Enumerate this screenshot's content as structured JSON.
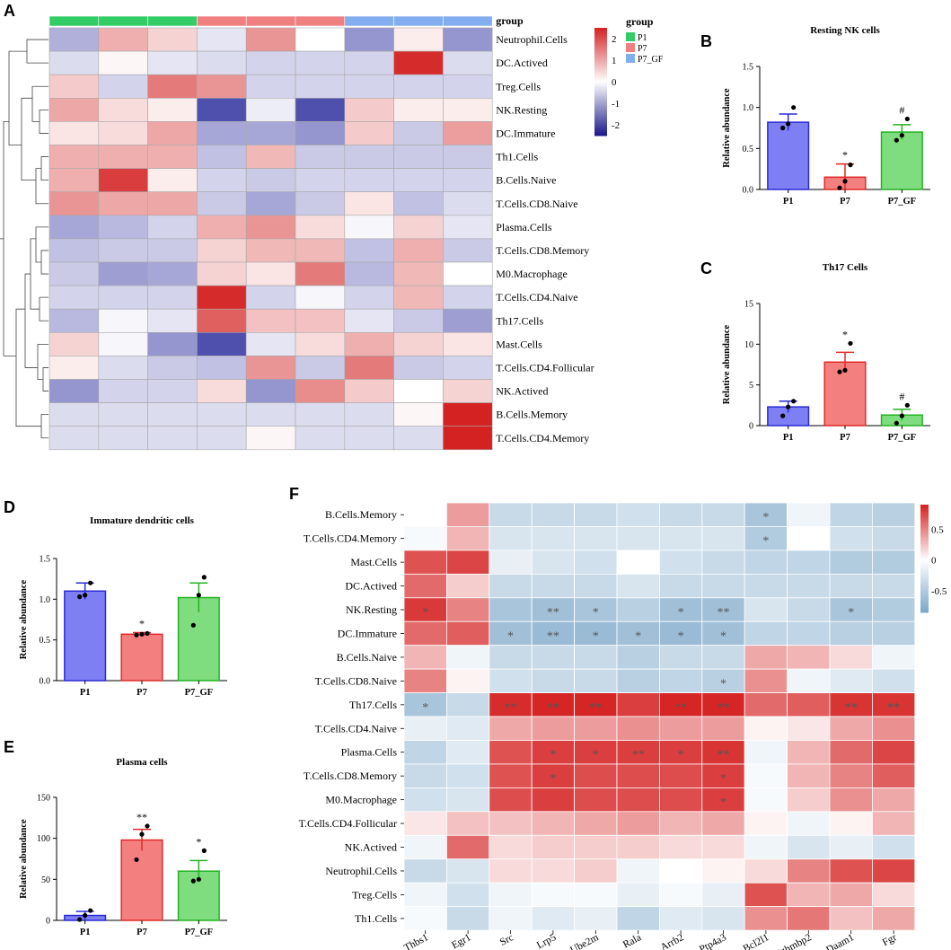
{
  "colors": {
    "P1": "#33cc66",
    "P7": "#f08080",
    "P7_GF": "#82aef0",
    "neg": "#1f1f9a",
    "pos": "#d42020"
  },
  "panels": {
    "A": "A",
    "B": "B",
    "C": "C",
    "D": "D",
    "E": "E",
    "F": "F"
  },
  "chart_data": [
    {
      "type": "heatmap",
      "panel": "A",
      "column_groups": [
        "P1",
        "P1",
        "P1",
        "P7",
        "P7",
        "P7",
        "P7_GF",
        "P7_GF",
        "P7_GF"
      ],
      "group_header": "group",
      "legend_title": "group",
      "legend_items": [
        "P1",
        "P7",
        "P7_GF"
      ],
      "colorbar_ticks": [
        "2",
        "1",
        "0",
        "-1",
        "-2"
      ],
      "colorbar_range": [
        -2.5,
        2.5
      ],
      "rows": [
        "Neutrophil.Cells",
        "DC.Actived",
        "Treg.Cells",
        "NK.Resting",
        "DC.Immature",
        "Th1.Cells",
        "B.Cells.Naive",
        "T.Cells.CD8.Naive",
        "Plasma.Cells",
        "T.Cells.CD8.Memory",
        "M0.Macrophage",
        "T.Cells.CD4.Naive",
        "Th17.Cells",
        "Mast.Cells",
        "T.Cells.CD4.Follicular",
        "NK.Actived",
        "B.Cells.Memory",
        "T.Cells.CD4.Memory"
      ],
      "values": [
        [
          -0.9,
          0.9,
          0.5,
          -0.3,
          1.2,
          0.0,
          -1.2,
          0.2,
          -1.2
        ],
        [
          -0.4,
          0.1,
          -0.3,
          -0.4,
          -0.5,
          -0.5,
          -0.5,
          2.4,
          -0.4
        ],
        [
          0.6,
          -0.5,
          1.5,
          1.2,
          -0.5,
          -0.5,
          -0.5,
          -0.5,
          -0.5
        ],
        [
          1.0,
          0.4,
          0.2,
          -2.0,
          -0.2,
          -2.0,
          0.6,
          0.2,
          0.2
        ],
        [
          0.3,
          0.4,
          1.0,
          -1.0,
          -1.0,
          -1.2,
          0.6,
          -0.6,
          1.1
        ],
        [
          0.9,
          0.9,
          0.9,
          -0.7,
          0.8,
          -0.6,
          -0.6,
          -0.6,
          -0.6
        ],
        [
          0.9,
          2.2,
          0.2,
          -0.5,
          -0.6,
          -0.5,
          -0.5,
          -0.5,
          -0.5
        ],
        [
          1.2,
          1.0,
          1.0,
          -0.6,
          -1.0,
          -0.6,
          0.3,
          -0.7,
          -0.4
        ],
        [
          -1.0,
          -0.8,
          -0.5,
          0.9,
          1.2,
          0.4,
          -0.1,
          0.5,
          -0.3
        ],
        [
          -0.7,
          -0.6,
          -0.6,
          0.5,
          0.8,
          0.8,
          -0.7,
          0.9,
          -0.6
        ],
        [
          -0.6,
          -1.1,
          -1.0,
          0.5,
          0.3,
          1.5,
          -0.8,
          0.8,
          0.0
        ],
        [
          -0.5,
          -0.5,
          -0.5,
          2.4,
          -0.5,
          -0.1,
          -0.5,
          0.8,
          -0.5
        ],
        [
          -0.8,
          -0.1,
          -0.3,
          1.8,
          0.7,
          0.7,
          -0.3,
          -0.6,
          -1.1
        ],
        [
          0.5,
          -0.1,
          -1.2,
          -2.0,
          -0.3,
          0.4,
          0.9,
          0.5,
          0.3
        ],
        [
          0.2,
          -0.4,
          -0.6,
          -0.7,
          1.2,
          -0.6,
          1.5,
          -0.6,
          -0.5
        ],
        [
          -1.2,
          -0.5,
          -0.5,
          0.4,
          -1.2,
          1.3,
          0.6,
          0.0,
          0.5
        ],
        [
          -0.4,
          -0.4,
          -0.4,
          -0.4,
          -0.4,
          -0.4,
          -0.4,
          0.1,
          2.6
        ],
        [
          -0.4,
          -0.4,
          -0.4,
          -0.4,
          0.1,
          -0.4,
          -0.4,
          -0.4,
          2.6
        ]
      ]
    },
    {
      "type": "bar",
      "panel": "B",
      "title": "Resting NK cells",
      "ylabel": "Relative abundance",
      "categories": [
        "P1",
        "P7",
        "P7_GF"
      ],
      "values": [
        0.82,
        0.15,
        0.7
      ],
      "errors": [
        0.1,
        0.16,
        0.09
      ],
      "points": [
        [
          0.75,
          0.8,
          1.0
        ],
        [
          0.02,
          0.1,
          0.3
        ],
        [
          0.6,
          0.66,
          0.86
        ]
      ],
      "ylim": [
        0,
        1.5
      ],
      "yticks": [
        "0.0",
        "0.5",
        "1.0",
        "1.5"
      ],
      "annotations": [
        "",
        "*",
        "#"
      ]
    },
    {
      "type": "bar",
      "panel": "C",
      "title": "Th17 Cells",
      "ylabel": "Relative abundance",
      "categories": [
        "P1",
        "P7",
        "P7_GF"
      ],
      "values": [
        2.3,
        7.8,
        1.3
      ],
      "errors": [
        0.7,
        1.2,
        0.7
      ],
      "points": [
        [
          1.2,
          2.3,
          3.0
        ],
        [
          6.6,
          6.8,
          10.1
        ],
        [
          0.3,
          1.2,
          2.5
        ]
      ],
      "ylim": [
        0,
        15
      ],
      "yticks": [
        "0",
        "5",
        "10",
        "15"
      ],
      "annotations": [
        "",
        "*",
        "#"
      ]
    },
    {
      "type": "bar",
      "panel": "D",
      "title": "Immature dendritic cells",
      "ylabel": "Relative abundance",
      "categories": [
        "P1",
        "P7",
        "P7_GF"
      ],
      "values": [
        1.1,
        0.57,
        1.02
      ],
      "errors": [
        0.1,
        0.02,
        0.18
      ],
      "points": [
        [
          1.03,
          1.05,
          1.2
        ],
        [
          0.56,
          0.57,
          0.58
        ],
        [
          0.68,
          1.05,
          1.27
        ]
      ],
      "ylim": [
        0,
        1.5
      ],
      "yticks": [
        "0.0",
        "0.5",
        "1.0",
        "1.5"
      ],
      "annotations": [
        "",
        "*",
        ""
      ]
    },
    {
      "type": "bar",
      "panel": "E",
      "title": "Plasma cells",
      "ylabel": "Relative abundance",
      "categories": [
        "P1",
        "P7",
        "P7_GF"
      ],
      "values": [
        6,
        98,
        60
      ],
      "errors": [
        5,
        13,
        13
      ],
      "points": [
        [
          1,
          6,
          12
        ],
        [
          74,
          105,
          115
        ],
        [
          48,
          50,
          85
        ]
      ],
      "ylim": [
        0,
        150
      ],
      "yticks": [
        "0",
        "50",
        "100",
        "150"
      ],
      "annotations": [
        "",
        "**",
        "*"
      ]
    },
    {
      "type": "heatmap",
      "panel": "F",
      "rows": [
        "B.Cells.Memory",
        "T.Cells.CD4.Memory",
        "Mast.Cells",
        "DC.Actived",
        "NK.Resting",
        "DC.Immature",
        "B.Cells.Naive",
        "T.Cells.CD8.Naive",
        "Th17.Cells",
        "T.Cells.CD4.Naive",
        "Plasma.Cells",
        "T.Cells.CD8.Memory",
        "M0.Macrophage",
        "T.Cells.CD4.Follicular",
        "NK.Actived",
        "Neutrophil.Cells",
        "Treg.Cells",
        "Th1.Cells"
      ],
      "columns": [
        "Thbs1",
        "Egr1",
        "Src",
        "Lrp5",
        "Ube2m",
        "Rala",
        "Arrb2",
        "Ptp4a3",
        "Bcl2l1",
        "Ighmbp2",
        "Daam1",
        "Fgr"
      ],
      "colorbar_ticks": [
        "0.5",
        "0",
        "-0.5"
      ],
      "colorbar_range": [
        -0.85,
        0.9
      ],
      "values": [
        [
          0.0,
          0.4,
          -0.35,
          -0.35,
          -0.35,
          -0.3,
          -0.35,
          -0.35,
          -0.55,
          -0.1,
          -0.4,
          -0.45
        ],
        [
          -0.05,
          0.3,
          -0.25,
          -0.25,
          -0.25,
          -0.25,
          -0.25,
          -0.25,
          -0.5,
          0.0,
          -0.3,
          -0.35
        ],
        [
          0.7,
          0.75,
          -0.15,
          -0.25,
          -0.3,
          0.0,
          -0.3,
          -0.35,
          -0.4,
          -0.4,
          -0.5,
          -0.5
        ],
        [
          0.6,
          0.2,
          -0.35,
          -0.35,
          -0.35,
          -0.25,
          -0.35,
          -0.35,
          -0.35,
          -0.35,
          -0.35,
          -0.35
        ],
        [
          0.8,
          0.5,
          -0.55,
          -0.6,
          -0.55,
          -0.45,
          -0.6,
          -0.6,
          -0.25,
          -0.35,
          -0.55,
          -0.5
        ],
        [
          0.6,
          0.65,
          -0.6,
          -0.65,
          -0.65,
          -0.6,
          -0.65,
          -0.6,
          -0.4,
          -0.4,
          -0.45,
          -0.45
        ],
        [
          0.3,
          -0.1,
          -0.35,
          -0.35,
          -0.35,
          -0.45,
          -0.35,
          -0.35,
          0.35,
          0.3,
          0.15,
          -0.1
        ],
        [
          0.5,
          0.05,
          -0.3,
          -0.35,
          -0.35,
          -0.45,
          -0.4,
          -0.45,
          0.45,
          -0.1,
          -0.2,
          -0.3
        ],
        [
          -0.55,
          -0.35,
          0.85,
          0.88,
          0.88,
          0.78,
          0.88,
          0.88,
          0.6,
          0.65,
          0.82,
          0.82
        ],
        [
          -0.15,
          -0.2,
          0.35,
          0.4,
          0.4,
          0.45,
          0.4,
          0.4,
          0.05,
          0.1,
          0.35,
          0.45
        ],
        [
          -0.4,
          -0.2,
          0.7,
          0.78,
          0.78,
          0.78,
          0.78,
          0.82,
          -0.1,
          0.3,
          0.6,
          0.75
        ],
        [
          -0.35,
          -0.3,
          0.7,
          0.78,
          0.72,
          0.72,
          0.72,
          0.78,
          -0.05,
          0.3,
          0.5,
          0.65
        ],
        [
          -0.3,
          -0.25,
          0.72,
          0.78,
          0.72,
          0.72,
          0.72,
          0.78,
          -0.05,
          0.2,
          0.45,
          0.35
        ],
        [
          0.1,
          0.25,
          0.25,
          0.3,
          0.35,
          0.4,
          0.3,
          0.35,
          0.05,
          -0.1,
          0.05,
          0.3
        ],
        [
          -0.1,
          0.6,
          0.15,
          0.2,
          0.2,
          0.2,
          0.15,
          0.15,
          -0.1,
          -0.25,
          -0.15,
          -0.3
        ],
        [
          -0.35,
          -0.25,
          0.15,
          0.15,
          0.2,
          -0.1,
          0.0,
          0.05,
          0.15,
          0.5,
          0.7,
          0.75
        ],
        [
          -0.1,
          -0.3,
          -0.1,
          -0.05,
          -0.05,
          -0.15,
          -0.05,
          -0.15,
          0.7,
          0.3,
          0.35,
          0.15
        ],
        [
          -0.05,
          -0.35,
          -0.1,
          -0.2,
          -0.15,
          -0.4,
          -0.2,
          -0.25,
          0.45,
          0.55,
          0.25,
          0.35
        ]
      ],
      "stars": [
        [
          "",
          "",
          "",
          "",
          "",
          "",
          "",
          "",
          "*",
          "",
          "",
          ""
        ],
        [
          "",
          "",
          "",
          "",
          "",
          "",
          "",
          "",
          "*",
          "",
          "",
          ""
        ],
        [
          "",
          "",
          "",
          "",
          "",
          "",
          "",
          "",
          "",
          "",
          "",
          ""
        ],
        [
          "",
          "",
          "",
          "",
          "",
          "",
          "",
          "",
          "",
          "",
          "",
          ""
        ],
        [
          "*",
          "",
          "",
          "**",
          "*",
          "",
          "*",
          "**",
          "",
          "",
          "*",
          ""
        ],
        [
          "",
          "",
          "*",
          "**",
          "*",
          "*",
          "*",
          "*",
          "",
          "",
          "",
          ""
        ],
        [
          "",
          "",
          "",
          "",
          "",
          "",
          "",
          "",
          "",
          "",
          "",
          ""
        ],
        [
          "",
          "",
          "",
          "",
          "",
          "",
          "",
          "*",
          "",
          "",
          "",
          ""
        ],
        [
          "*",
          "",
          "**",
          "**",
          "**",
          "",
          "**",
          "**",
          "",
          "",
          "**",
          "**"
        ],
        [
          "",
          "",
          "",
          "",
          "",
          "",
          "",
          "",
          "",
          "",
          "",
          ""
        ],
        [
          "",
          "",
          "",
          "*",
          "*",
          "**",
          "*",
          "**",
          "",
          "",
          "",
          ""
        ],
        [
          "",
          "",
          "",
          "*",
          "",
          "",
          "",
          "*",
          "",
          "",
          "",
          ""
        ],
        [
          "",
          "",
          "",
          "",
          "",
          "",
          "",
          "*",
          "",
          "",
          "",
          ""
        ],
        [
          "",
          "",
          "",
          "",
          "",
          "",
          "",
          "",
          "",
          "",
          "",
          ""
        ],
        [
          "",
          "",
          "",
          "",
          "",
          "",
          "",
          "",
          "",
          "",
          "",
          ""
        ],
        [
          "",
          "",
          "",
          "",
          "",
          "",
          "",
          "",
          "",
          "",
          "",
          ""
        ],
        [
          "",
          "",
          "",
          "",
          "",
          "",
          "",
          "",
          "",
          "",
          "",
          ""
        ],
        [
          "",
          "",
          "",
          "",
          "",
          "",
          "",
          "",
          "",
          "",
          "",
          ""
        ]
      ]
    }
  ]
}
